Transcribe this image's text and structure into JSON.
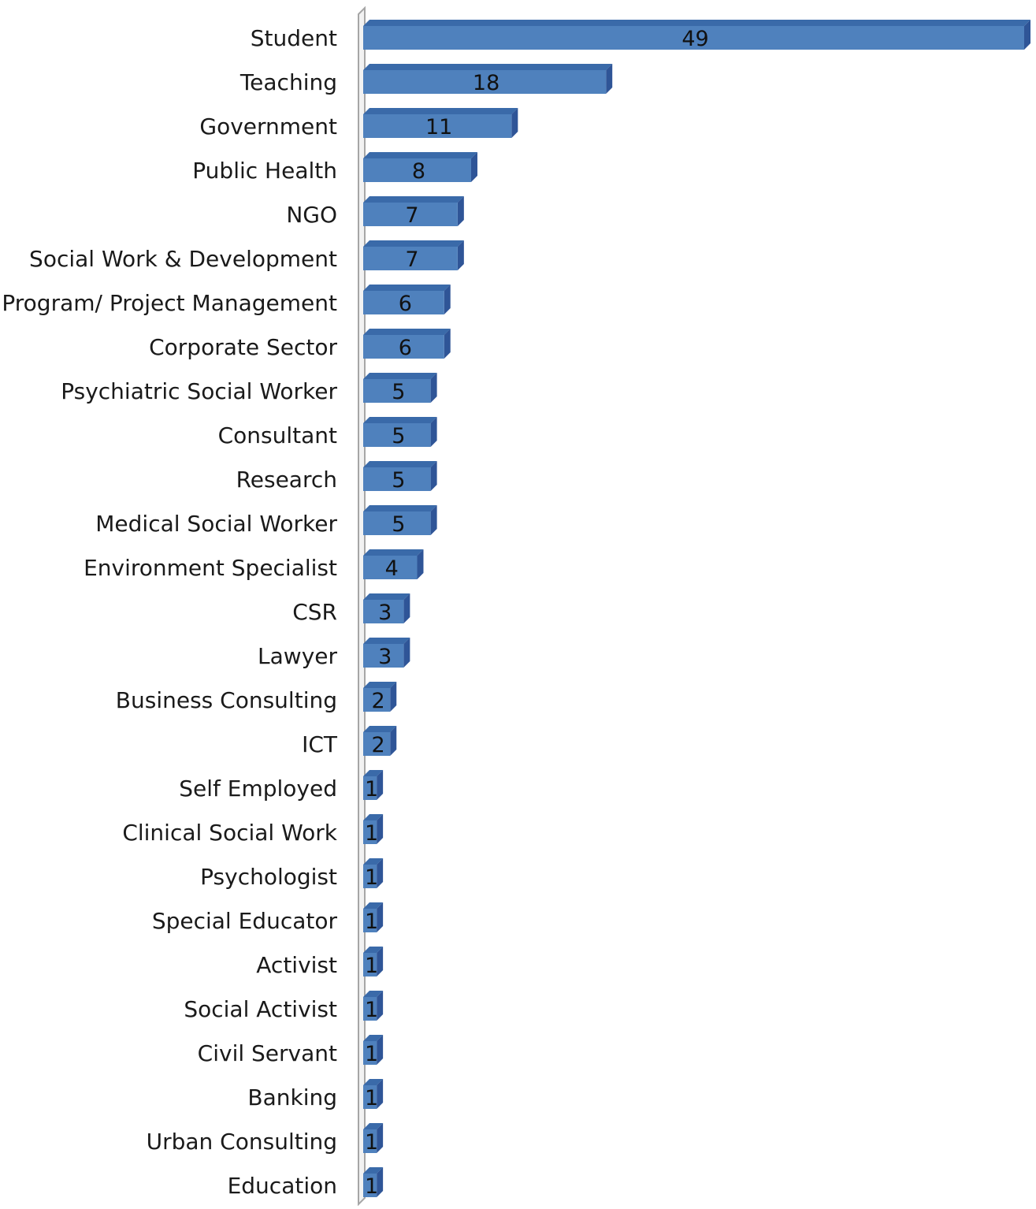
{
  "chart_data": {
    "type": "bar",
    "orientation": "horizontal",
    "style": "3d",
    "bar_color": "#4f81bd",
    "bar_side_color": "#2f5597",
    "bar_top_color": "#3a6aa9",
    "axis_color": "#a6a6a6",
    "grid": false,
    "legend": "none",
    "xlim": [
      0,
      49
    ],
    "categories": [
      "Student",
      "Teaching",
      "Government",
      "Public Health",
      "NGO",
      "Social Work & Development",
      "Program/ Project Management",
      "Corporate Sector",
      "Psychiatric Social Worker",
      "Consultant",
      "Research",
      "Medical Social Worker",
      "Environment Specialist",
      "CSR",
      "Lawyer",
      "Business Consulting",
      "ICT",
      "Self Employed",
      "Clinical Social Work",
      "Psychologist",
      "Special Educator",
      "Activist",
      "Social Activist",
      "Civil Servant",
      "Banking",
      "Urban Consulting",
      "Education"
    ],
    "values": [
      49,
      18,
      11,
      8,
      7,
      7,
      6,
      6,
      5,
      5,
      5,
      5,
      4,
      3,
      3,
      2,
      2,
      1,
      1,
      1,
      1,
      1,
      1,
      1,
      1,
      1,
      1
    ]
  }
}
